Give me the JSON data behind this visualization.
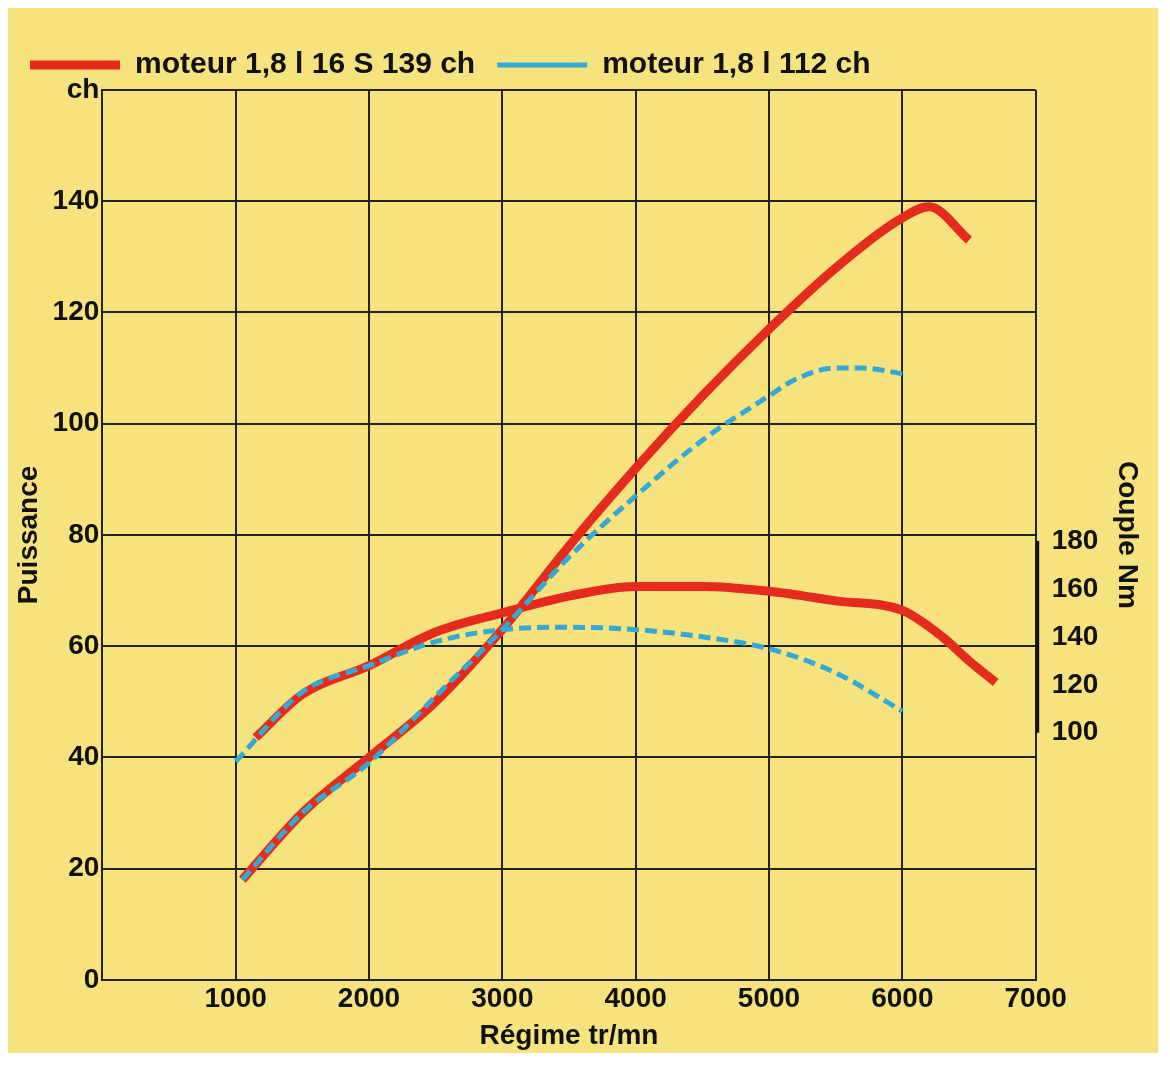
{
  "chart_data": {
    "type": "line",
    "xlabel": "Régime tr/mn",
    "ylabel": "Puissance",
    "y2label": "Couple Nm",
    "xlim": [
      0,
      7000
    ],
    "xticks": [
      1000,
      2000,
      3000,
      4000,
      5000,
      6000,
      7000
    ],
    "ylim": [
      0,
      160
    ],
    "yticks": [
      0,
      20,
      40,
      60,
      80,
      100,
      120,
      140,
      {
        "value": 160,
        "label": "ch"
      }
    ],
    "y2lim": [
      -3,
      368
    ],
    "y2ticks": [
      100,
      120,
      140,
      160,
      180
    ],
    "grid": true,
    "legend": "top left",
    "marker": "none",
    "series": [
      {
        "name": "moteur 1,8 l 16 S 139 ch",
        "color": "#e52b1e",
        "line_style": "solid",
        "x": [
          1050,
          1500,
          2000,
          2500,
          3000,
          3500,
          4000,
          4500,
          5000,
          5500,
          6000,
          6200,
          6500
        ],
        "values": [
          18,
          30,
          40,
          50,
          63,
          78,
          92,
          105,
          117,
          128,
          137,
          139,
          133
        ]
      },
      {
        "name": "moteur 1,8 l 112 ch",
        "color": "#35a9d4",
        "line_style": "dashed",
        "x": [
          1050,
          1500,
          2000,
          2500,
          3000,
          3500,
          4000,
          4500,
          5000,
          5200,
          5500,
          5700,
          6000
        ],
        "values": [
          18,
          30,
          39,
          51,
          63,
          76,
          87,
          97,
          105,
          108,
          110,
          110,
          109
        ]
      },
      {
        "color": "#e52b1e",
        "line_style": "solid",
        "axis": "y2",
        "x": [
          1150,
          1500,
          2000,
          2500,
          3000,
          3500,
          4000,
          4500,
          5000,
          5500,
          6000,
          6300,
          6500,
          6700
        ],
        "values": [
          98,
          116,
          128,
          142,
          150,
          157,
          161,
          161,
          159,
          155,
          151,
          140,
          130,
          121
        ]
      },
      {
        "color": "#35a9d4",
        "line_style": "dashed",
        "axis": "y2",
        "x": [
          1000,
          1500,
          2000,
          2500,
          3000,
          3500,
          4000,
          4500,
          5000,
          5500,
          6000
        ],
        "values": [
          88,
          117,
          128,
          138,
          143,
          144,
          143,
          140,
          135,
          125,
          109
        ]
      }
    ]
  }
}
